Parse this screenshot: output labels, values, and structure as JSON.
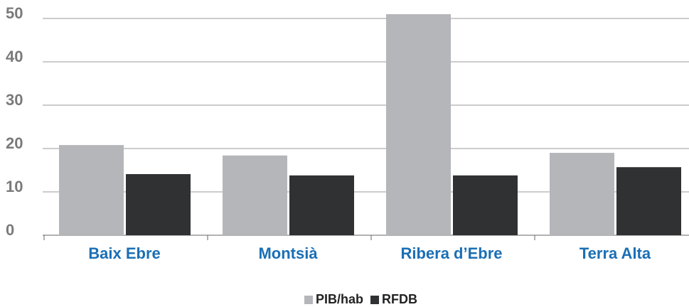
{
  "chart_data": {
    "type": "bar",
    "categories": [
      "Baix Ebre",
      "Montsià",
      "Ribera d’Ebre",
      "Terra Alta"
    ],
    "series": [
      {
        "name": "PIB/hab",
        "color": "#b5b6ba",
        "values": [
          20.8,
          18.4,
          51.0,
          19.0
        ]
      },
      {
        "name": "RFDB",
        "color": "#303133",
        "values": [
          14.1,
          13.8,
          13.8,
          15.7
        ]
      }
    ],
    "ylim": [
      0,
      52
    ],
    "yticks": [
      0,
      10,
      20,
      30,
      40,
      50
    ],
    "grid": true,
    "legend": "bottom"
  }
}
